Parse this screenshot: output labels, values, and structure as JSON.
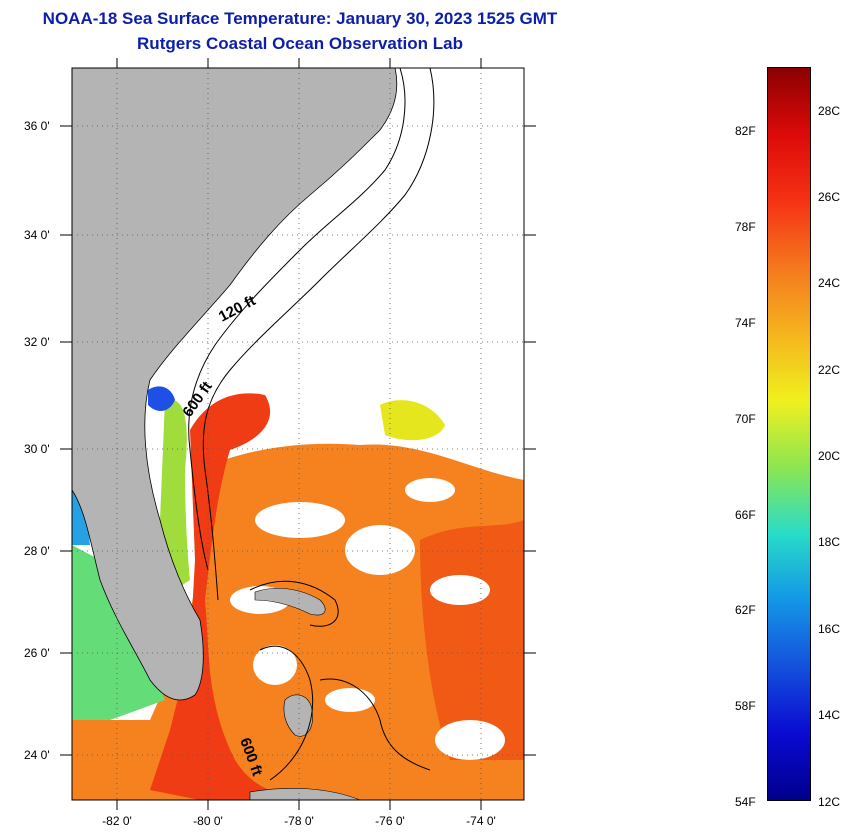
{
  "title": {
    "line1": "NOAA-18 Sea Surface Temperature:  January 30, 2023 1525 GMT",
    "line2": "Rutgers Coastal Ocean Observation Lab"
  },
  "map": {
    "latitude_labels": [
      "36 0'",
      "34 0'",
      "32 0'",
      "30 0'",
      "28 0'",
      "26 0'",
      "24 0'"
    ],
    "longitude_labels": [
      "-82 0'",
      "-80 0'",
      "-78 0'",
      "-76 0'",
      "-74 0'"
    ],
    "contour_labels": [
      "120 ft",
      "600 ft",
      "600 ft"
    ],
    "colors": {
      "land": "#b4b4b4",
      "cloud": "#ffffff",
      "warm_sst": "#f03c14",
      "mid_sst": "#f5821e",
      "cool_sst": "#e6e61e",
      "cold_sst": "#1e50e6"
    }
  },
  "colorbar": {
    "fahrenheit_labels": [
      "82F",
      "78F",
      "74F",
      "70F",
      "66F",
      "62F",
      "58F",
      "54F"
    ],
    "celsius_labels": [
      "28C",
      "26C",
      "24C",
      "22C",
      "20C",
      "18C",
      "16C",
      "14C",
      "12C"
    ],
    "gradient_stops": [
      "#8c0000",
      "#dc0a0a",
      "#f53214",
      "#f5781e",
      "#f5b41e",
      "#f0f01e",
      "#8ce650",
      "#28dcc8",
      "#1496e6",
      "#1450dc",
      "#0a0ad2",
      "#00008c"
    ]
  }
}
